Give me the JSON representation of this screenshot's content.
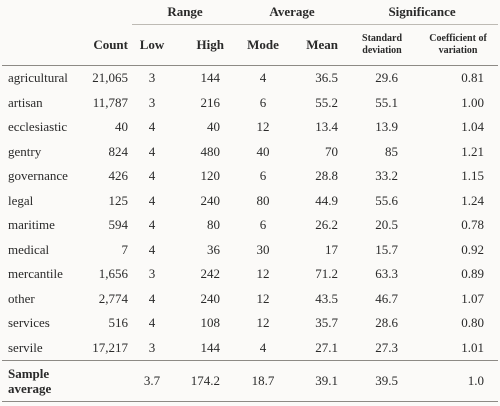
{
  "table": {
    "group_headers": [
      "Range",
      "Average",
      "Significance"
    ],
    "columns": [
      "Count",
      "Low",
      "High",
      "Mode",
      "Mean",
      "Standard deviation",
      "Coefficient of variation"
    ],
    "rows": [
      [
        "agricultural",
        "21,065",
        "3",
        "144",
        "4",
        "36.5",
        "29.6",
        "0.81"
      ],
      [
        "artisan",
        "11,787",
        "3",
        "216",
        "6",
        "55.2",
        "55.1",
        "1.00"
      ],
      [
        "ecclesiastic",
        "40",
        "4",
        "40",
        "12",
        "13.4",
        "13.9",
        "1.04"
      ],
      [
        "gentry",
        "824",
        "4",
        "480",
        "40",
        "70",
        "85",
        "1.21"
      ],
      [
        "governance",
        "426",
        "4",
        "120",
        "6",
        "28.8",
        "33.2",
        "1.15"
      ],
      [
        "legal",
        "125",
        "4",
        "240",
        "80",
        "44.9",
        "55.6",
        "1.24"
      ],
      [
        "maritime",
        "594",
        "4",
        "80",
        "6",
        "26.2",
        "20.5",
        "0.78"
      ],
      [
        "medical",
        "7",
        "4",
        "36",
        "30",
        "17",
        "15.7",
        "0.92"
      ],
      [
        "mercantile",
        "1,656",
        "3",
        "242",
        "12",
        "71.2",
        "63.3",
        "0.89"
      ],
      [
        "other",
        "2,774",
        "4",
        "240",
        "12",
        "43.5",
        "46.7",
        "1.07"
      ],
      [
        "services",
        "516",
        "4",
        "108",
        "12",
        "35.7",
        "28.6",
        "0.80"
      ],
      [
        "servile",
        "17,217",
        "3",
        "144",
        "4",
        "27.1",
        "27.3",
        "1.01"
      ]
    ],
    "footer": {
      "label": "Sample average",
      "low": "3.7",
      "high": "174.2",
      "mode": "18.7",
      "mean": "39.1",
      "sd": "39.5",
      "cv": "1.0"
    }
  }
}
